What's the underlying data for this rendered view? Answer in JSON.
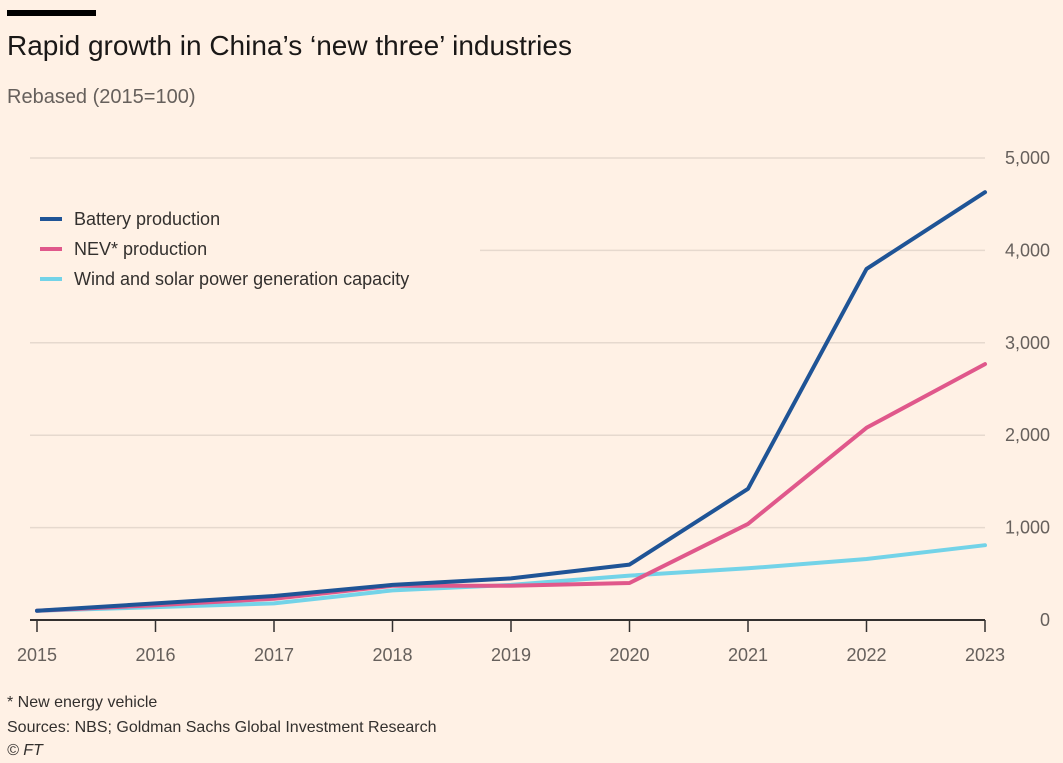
{
  "chart_data": {
    "type": "line",
    "title": "Rapid growth in China’s ‘new three’ industries",
    "subtitle": "Rebased (2015=100)",
    "x": [
      "2015",
      "2016",
      "2017",
      "2018",
      "2019",
      "2020",
      "2021",
      "2022",
      "2023"
    ],
    "ylim": [
      0,
      5000
    ],
    "yticks": [
      0,
      1000,
      2000,
      3000,
      4000,
      5000
    ],
    "ytick_labels": [
      "0",
      "1,000",
      "2,000",
      "3,000",
      "4,000",
      "5,000"
    ],
    "legend_position": "top-left",
    "grid": true,
    "series": [
      {
        "name": "Battery production",
        "color": "#1f5496",
        "values": [
          100,
          180,
          260,
          380,
          450,
          600,
          1420,
          3800,
          4630
        ]
      },
      {
        "name": "NEV* production",
        "color": "#e0588b",
        "values": [
          100,
          160,
          230,
          370,
          370,
          400,
          1040,
          2080,
          2770
        ]
      },
      {
        "name": "Wind and solar power generation capacity",
        "color": "#73d3e8",
        "values": [
          100,
          140,
          180,
          320,
          380,
          480,
          560,
          660,
          810
        ]
      }
    ]
  },
  "footer": {
    "note": "* New energy vehicle",
    "sources": "Sources: NBS; Goldman Sachs Global Investment Research",
    "credit": "© FT"
  }
}
